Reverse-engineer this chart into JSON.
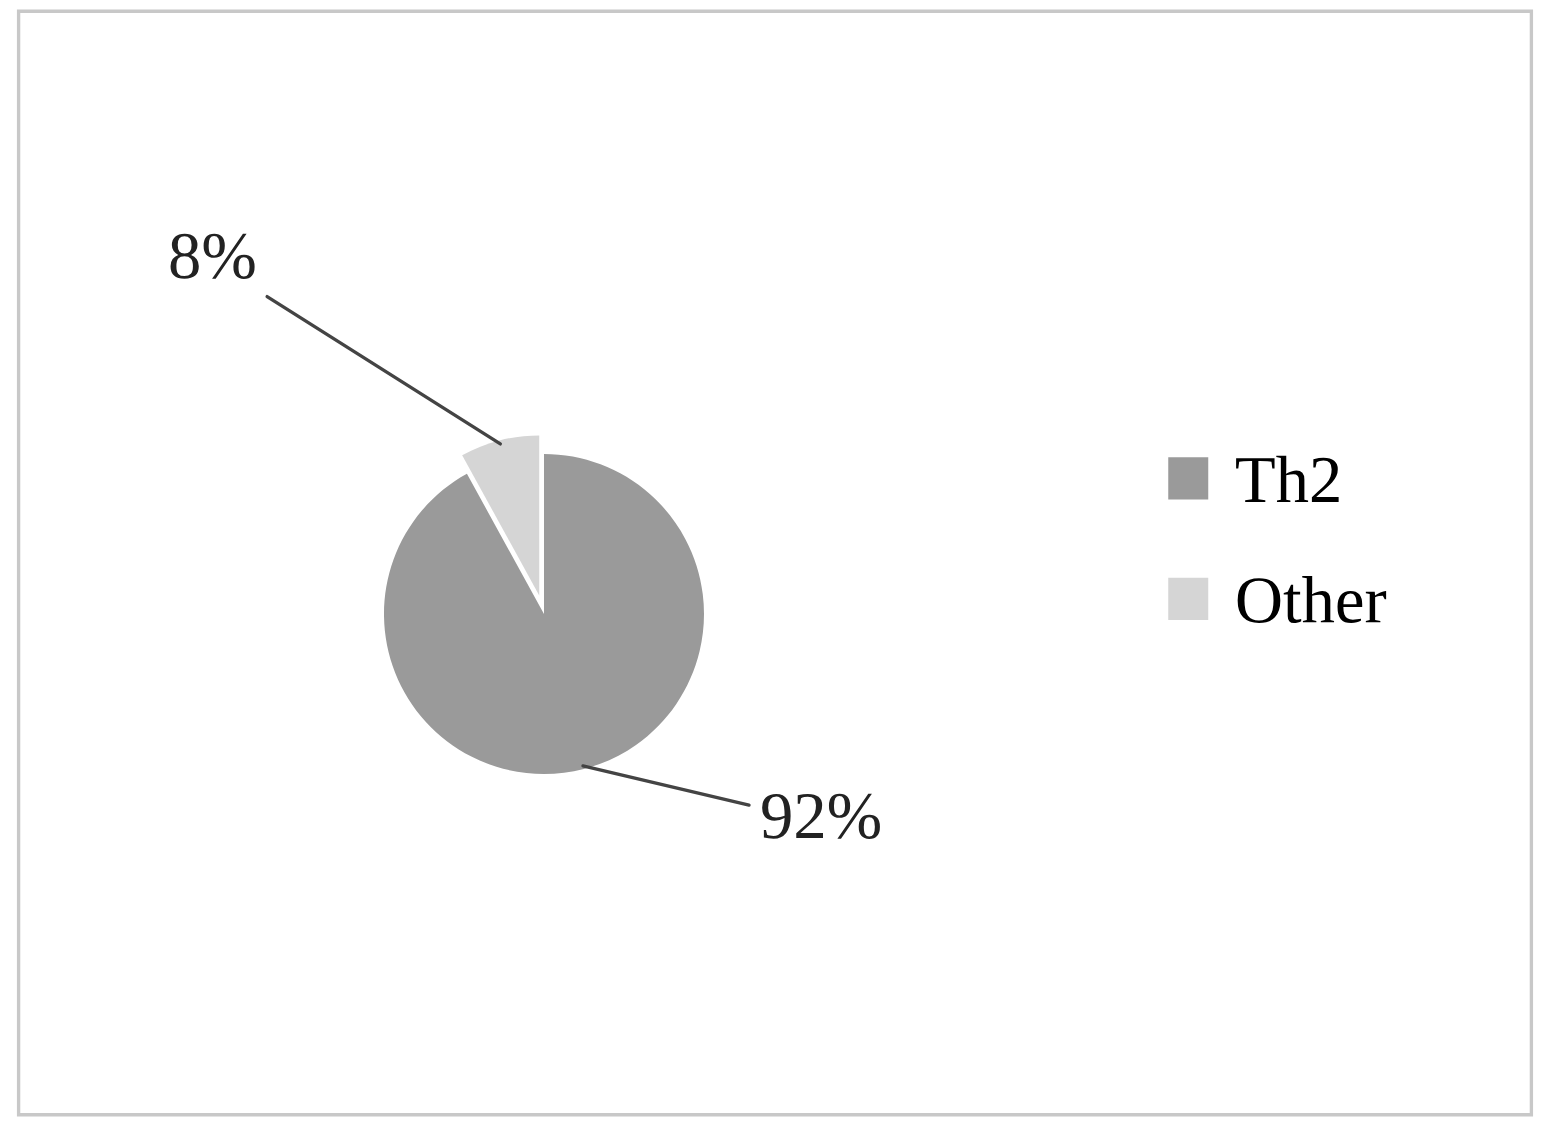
{
  "chart_data": {
    "type": "pie",
    "categories": [
      "Th2",
      "Other"
    ],
    "values": [
      92,
      8
    ],
    "colors": [
      "#9a9a9a",
      "#d5d5d5"
    ],
    "value_labels": [
      "92%",
      "8%"
    ],
    "legend": "right"
  }
}
